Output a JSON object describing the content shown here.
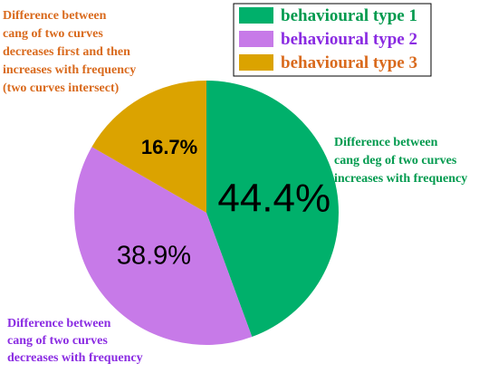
{
  "chart_data": {
    "type": "pie",
    "labels": [
      "behavioural type 1",
      "behavioural type 2",
      "behavioural type 3"
    ],
    "values": [
      44.4,
      38.9,
      16.7
    ],
    "value_labels": [
      "44.4%",
      "38.9%",
      "16.7%"
    ],
    "colors": [
      "#00b06b",
      "#c77ae8",
      "#dba300"
    ],
    "legend_text_colors": [
      "#009a4e",
      "#8a2be2",
      "#d96a1d"
    ],
    "legend_position": "top-right",
    "annotations": [
      {
        "series_index": 0,
        "lines": [
          "Difference between",
          "cang deg of two curves",
          "increases with frequency"
        ]
      },
      {
        "series_index": 1,
        "lines": [
          "Difference between",
          "cang of two curves",
          "decreases with frequency"
        ]
      },
      {
        "series_index": 2,
        "lines": [
          "Difference between",
          "cang of two curves",
          "decreases first and then",
          "increases with frequency",
          "(two curves intersect)"
        ]
      }
    ]
  }
}
